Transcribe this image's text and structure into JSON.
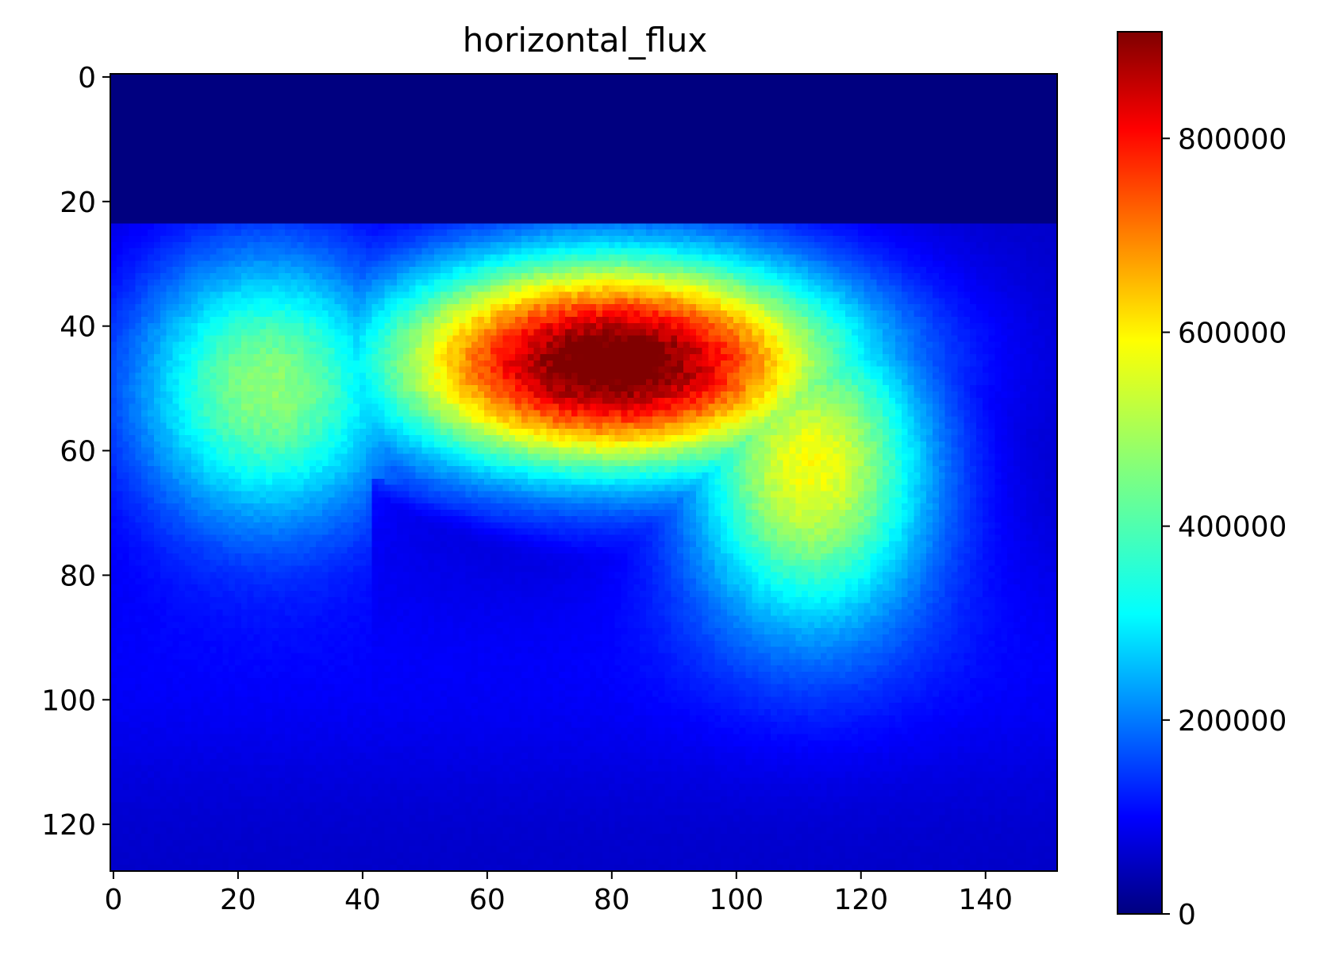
{
  "chart_data": {
    "type": "heatmap",
    "title": "horizontal_flux",
    "xlabel": "",
    "ylabel": "",
    "colormap": "jet",
    "image_shape": {
      "rows": 128,
      "cols": 152
    },
    "x_range": [
      -0.5,
      151.5
    ],
    "y_range": [
      -0.5,
      127.5
    ],
    "y_axis_inverted": true,
    "xticks": [
      0,
      20,
      40,
      60,
      80,
      100,
      120,
      140
    ],
    "xtick_labels": [
      "0",
      "20",
      "40",
      "60",
      "80",
      "100",
      "120",
      "140"
    ],
    "yticks": [
      0,
      20,
      40,
      60,
      80,
      100,
      120
    ],
    "ytick_labels": [
      "0",
      "20",
      "40",
      "60",
      "80",
      "100",
      "120"
    ],
    "colorbar": {
      "range": [
        0,
        910000
      ],
      "ticks": [
        0,
        200000,
        400000,
        600000,
        800000
      ],
      "tick_labels": [
        "0",
        "200000",
        "400000",
        "600000",
        "800000"
      ]
    },
    "field_description": {
      "zero_band_rows": [
        0,
        23
      ],
      "peak": {
        "row": 46,
        "col": 80,
        "value": 900000
      },
      "bright_region_rows": [
        24,
        85
      ],
      "low_region_below_row": 65
    }
  },
  "colors": {
    "background": "#ffffff",
    "axis": "#000000",
    "colormap_stops": [
      "#00007f",
      "#0000ff",
      "#007fff",
      "#00ffff",
      "#7fff7f",
      "#ffff00",
      "#ff7f00",
      "#ff0000",
      "#7f0000"
    ]
  }
}
